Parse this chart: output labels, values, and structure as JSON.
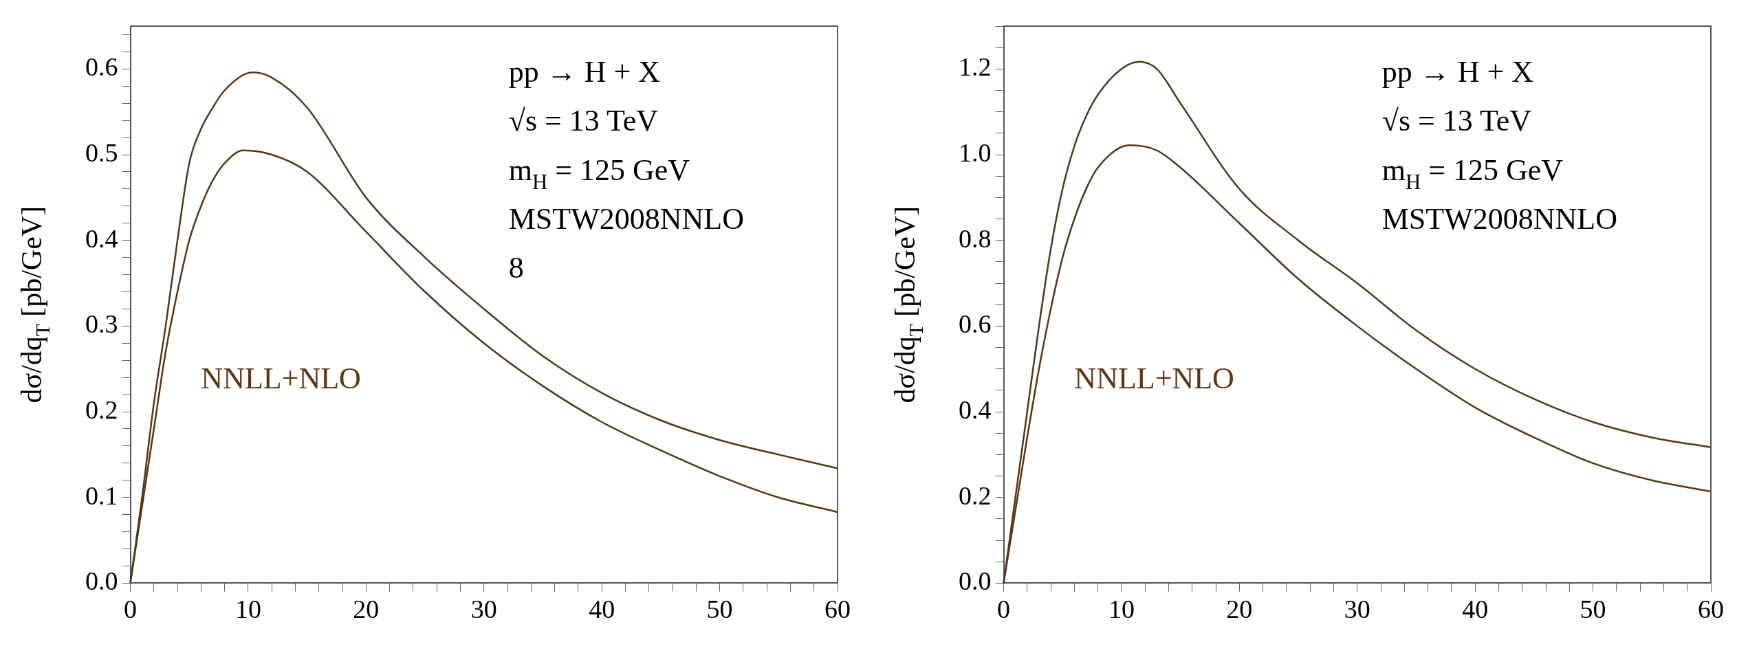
{
  "chart_data": [
    {
      "type": "line",
      "ylabel": "dσ/dq$_{T}$ [pb/GeV]",
      "annotations": [
        "pp → H + X",
        "√s = 13 TeV",
        "m$_{H}$ = 125 GeV",
        "MSTW2008NNLO",
        "8"
      ],
      "xlim": [
        0,
        60
      ],
      "ylim": [
        0,
        0.65
      ],
      "xticks": [
        0,
        {
          "value": 2,
          "label": null
        },
        {
          "value": 4,
          "label": null
        },
        {
          "value": 6,
          "label": null
        },
        {
          "value": 8,
          "label": null
        },
        10,
        {
          "value": 12,
          "label": null
        },
        {
          "value": 14,
          "label": null
        },
        {
          "value": 16,
          "label": null
        },
        {
          "value": 18,
          "label": null
        },
        20,
        {
          "value": 22,
          "label": null
        },
        {
          "value": 24,
          "label": null
        },
        {
          "value": 26,
          "label": null
        },
        {
          "value": 28,
          "label": null
        },
        30,
        {
          "value": 32,
          "label": null
        },
        {
          "value": 34,
          "label": null
        },
        {
          "value": 36,
          "label": null
        },
        {
          "value": 38,
          "label": null
        },
        40,
        {
          "value": 42,
          "label": null
        },
        {
          "value": 44,
          "label": null
        },
        {
          "value": 46,
          "label": null
        },
        {
          "value": 48,
          "label": null
        },
        50,
        {
          "value": 52,
          "label": null
        },
        {
          "value": 54,
          "label": null
        },
        {
          "value": 56,
          "label": null
        },
        {
          "value": 58,
          "label": null
        },
        60
      ],
      "yticks": [
        {
          "value": 0,
          "label": "0.0"
        },
        {
          "value": 0.02,
          "label": null
        },
        {
          "value": 0.04,
          "label": null
        },
        {
          "value": 0.06,
          "label": null
        },
        {
          "value": 0.08,
          "label": null
        },
        0.1,
        {
          "value": 0.12,
          "label": null
        },
        {
          "value": 0.14,
          "label": null
        },
        {
          "value": 0.16,
          "label": null
        },
        {
          "value": 0.18,
          "label": null
        },
        0.2,
        {
          "value": 0.22,
          "label": null
        },
        {
          "value": 0.24,
          "label": null
        },
        {
          "value": 0.26,
          "label": null
        },
        {
          "value": 0.28,
          "label": null
        },
        0.3,
        {
          "value": 0.32,
          "label": null
        },
        {
          "value": 0.34,
          "label": null
        },
        {
          "value": 0.36,
          "label": null
        },
        {
          "value": 0.38,
          "label": null
        },
        0.4,
        {
          "value": 0.42,
          "label": null
        },
        {
          "value": 0.44,
          "label": null
        },
        {
          "value": 0.46,
          "label": null
        },
        {
          "value": 0.48,
          "label": null
        },
        0.5,
        {
          "value": 0.52,
          "label": null
        },
        {
          "value": 0.54,
          "label": null
        },
        {
          "value": 0.56,
          "label": null
        },
        {
          "value": 0.58,
          "label": null
        },
        0.6,
        {
          "value": 0.62,
          "label": null
        },
        {
          "value": 0.64,
          "label": null
        }
      ],
      "series": [
        {
          "name": "NNLL+NLO",
          "color": "#5a3614",
          "x": [
            0,
            1,
            2,
            3,
            4,
            5,
            6,
            7,
            8,
            10.4,
            12,
            15,
            20,
            25,
            30,
            35,
            40,
            45,
            50,
            55,
            60
          ],
          "values": [
            0,
            0.1,
            0.21,
            0.3,
            0.4,
            0.49,
            0.53,
            0.555,
            0.575,
            0.596,
            0.59,
            0.555,
            0.45,
            0.38,
            0.32,
            0.265,
            0.222,
            0.19,
            0.167,
            0.15,
            0.134
          ]
        },
        {
          "color": "#5a3614",
          "x": [
            0,
            1,
            2,
            3,
            4,
            5,
            6,
            7,
            8,
            9.6,
            12,
            15,
            20,
            25,
            30,
            35,
            40,
            45,
            50,
            55,
            60
          ],
          "values": [
            0,
            0.09,
            0.18,
            0.27,
            0.34,
            0.4,
            0.44,
            0.47,
            0.49,
            0.505,
            0.5,
            0.48,
            0.41,
            0.34,
            0.28,
            0.23,
            0.188,
            0.155,
            0.125,
            0.1,
            0.083
          ]
        }
      ]
    },
    {
      "type": "line",
      "ylabel": "dσ/dq$_{T}$ [pb/GeV]",
      "annotations": [
        "pp → H + X",
        "√s = 13 TeV",
        "m$_{H}$ = 125 GeV",
        "MSTW2008NNLO"
      ],
      "xlim": [
        0,
        60
      ],
      "ylim": [
        0,
        1.3
      ],
      "xticks": [
        0,
        {
          "value": 2,
          "label": null
        },
        {
          "value": 4,
          "label": null
        },
        {
          "value": 6,
          "label": null
        },
        {
          "value": 8,
          "label": null
        },
        10,
        {
          "value": 12,
          "label": null
        },
        {
          "value": 14,
          "label": null
        },
        {
          "value": 16,
          "label": null
        },
        {
          "value": 18,
          "label": null
        },
        20,
        {
          "value": 22,
          "label": null
        },
        {
          "value": 24,
          "label": null
        },
        {
          "value": 26,
          "label": null
        },
        {
          "value": 28,
          "label": null
        },
        30,
        {
          "value": 32,
          "label": null
        },
        {
          "value": 34,
          "label": null
        },
        {
          "value": 36,
          "label": null
        },
        {
          "value": 38,
          "label": null
        },
        40,
        {
          "value": 42,
          "label": null
        },
        {
          "value": 44,
          "label": null
        },
        {
          "value": 46,
          "label": null
        },
        {
          "value": 48,
          "label": null
        },
        50,
        {
          "value": 52,
          "label": null
        },
        {
          "value": 54,
          "label": null
        },
        {
          "value": 56,
          "label": null
        },
        {
          "value": 58,
          "label": null
        },
        60
      ],
      "yticks": [
        {
          "value": 0,
          "label": "0.0"
        },
        {
          "value": 0.05,
          "label": null
        },
        {
          "value": 0.1,
          "label": null
        },
        {
          "value": 0.15,
          "label": null
        },
        0.2,
        {
          "value": 0.25,
          "label": null
        },
        {
          "value": 0.3,
          "label": null
        },
        {
          "value": 0.35,
          "label": null
        },
        0.4,
        {
          "value": 0.45,
          "label": null
        },
        {
          "value": 0.5,
          "label": null
        },
        {
          "value": 0.55,
          "label": null
        },
        0.6,
        {
          "value": 0.65,
          "label": null
        },
        {
          "value": 0.7,
          "label": null
        },
        {
          "value": 0.75,
          "label": null
        },
        0.8,
        {
          "value": 0.85,
          "label": null
        },
        {
          "value": 0.9,
          "label": null
        },
        {
          "value": 0.95,
          "label": null
        },
        {
          "value": 1,
          "label": "1.0"
        },
        {
          "value": 1.05,
          "label": null
        },
        {
          "value": 1.1,
          "label": null
        },
        {
          "value": 1.15,
          "label": null
        },
        1.2,
        {
          "value": 1.25,
          "label": null
        },
        {
          "value": 1.3,
          "label": null
        }
      ],
      "series": [
        {
          "name": "NNLL+NLO",
          "color": "#5a3614",
          "x": [
            0,
            1,
            2,
            3,
            4,
            5,
            6,
            7,
            8,
            10,
            11.5,
            13,
            15,
            20,
            25,
            30,
            35,
            40,
            45,
            50,
            55,
            60
          ],
          "values": [
            0,
            0.2,
            0.4,
            0.6,
            0.78,
            0.92,
            1.02,
            1.09,
            1.14,
            1.2,
            1.217,
            1.2,
            1.12,
            0.92,
            0.8,
            0.7,
            0.59,
            0.5,
            0.43,
            0.376,
            0.34,
            0.317
          ]
        },
        {
          "color": "#5a3614",
          "x": [
            0,
            1,
            2,
            3,
            4,
            5,
            6,
            7,
            8,
            10.7,
            13,
            15,
            20,
            25,
            30,
            35,
            40,
            45,
            50,
            55,
            60
          ],
          "values": [
            0,
            0.17,
            0.34,
            0.5,
            0.64,
            0.76,
            0.85,
            0.92,
            0.97,
            1.022,
            1.01,
            0.97,
            0.84,
            0.71,
            0.6,
            0.5,
            0.41,
            0.34,
            0.28,
            0.24,
            0.214
          ]
        }
      ]
    }
  ]
}
